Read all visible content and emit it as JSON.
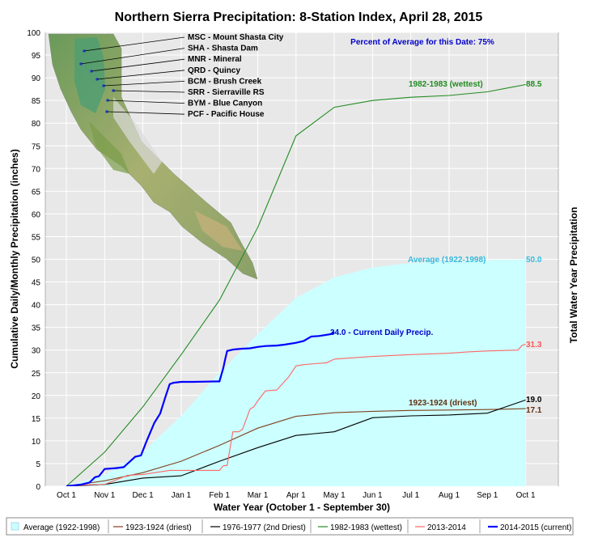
{
  "chart_data": {
    "type": "line",
    "title": "Northern Sierra Precipitation: 8-Station Index, April 28, 2015",
    "subtitle": "Percent of Average for this Date: 75%",
    "xlabel": "Water Year (October 1 - September 30)",
    "ylabel": "Cumulative Daily/Monthly Precipitation (inches)",
    "ylabel_right": "Total Water Year Precipitation",
    "x_ticks": [
      "Oct 1",
      "Nov 1",
      "Dec 1",
      "Jan 1",
      "Feb 1",
      "Mar 1",
      "Apr 1",
      "May 1",
      "Jun 1",
      "Jul 1",
      "Aug 1",
      "Sep 1",
      "Oct 1"
    ],
    "ylim": [
      0,
      100
    ],
    "y_ticks": [
      0,
      5,
      10,
      15,
      20,
      25,
      30,
      35,
      40,
      45,
      50,
      55,
      60,
      65,
      70,
      75,
      80,
      85,
      90,
      95,
      100
    ],
    "grid": true,
    "legend_position": "bottom",
    "series": [
      {
        "name": "Average (1922-1998)",
        "style": "area",
        "color": "#ccffff",
        "x": [
          0,
          1,
          2,
          3,
          4,
          5,
          6,
          7,
          8,
          9,
          10,
          11,
          12
        ],
        "values": [
          0,
          2.5,
          7.5,
          15.5,
          25,
          33.5,
          41.5,
          46,
          48.2,
          49.2,
          49.6,
          49.8,
          50.0
        ],
        "end_label": "50.0",
        "annotation": "Average (1922-1998)"
      },
      {
        "name": "1923-1924 (driest)",
        "color": "#804020",
        "x": [
          0,
          1,
          2,
          3,
          4,
          5,
          6,
          7,
          8,
          9,
          10,
          11,
          12
        ],
        "values": [
          0,
          1.2,
          3.0,
          5.5,
          9.0,
          12.8,
          15.4,
          16.2,
          16.5,
          16.7,
          16.8,
          16.9,
          17.1
        ],
        "end_label": "17.1",
        "annotation": "1923-1924 (driest)"
      },
      {
        "name": "1976-1977 (2nd Driest)",
        "color": "#000000",
        "x": [
          0,
          1,
          2,
          3,
          4,
          5,
          6,
          7,
          8,
          9,
          10,
          11,
          12
        ],
        "values": [
          0,
          0.4,
          1.8,
          2.3,
          5.5,
          8.5,
          11.2,
          12.0,
          15.1,
          15.5,
          15.7,
          16.1,
          19.0
        ],
        "end_label": "19.0"
      },
      {
        "name": "1982-1983 (wettest)",
        "color": "#228b22",
        "x": [
          0,
          1,
          2,
          3,
          4,
          5,
          6,
          7,
          8,
          9,
          10,
          11,
          12
        ],
        "values": [
          0,
          7.5,
          17.5,
          29,
          41,
          57,
          77.2,
          83.5,
          85,
          85.7,
          86.1,
          86.9,
          88.5
        ],
        "end_label": "88.5",
        "annotation": "1982-1983 (wettest)"
      },
      {
        "name": "2013-2014",
        "color": "#ff6666",
        "x": [
          0,
          0.5,
          1,
          1.6,
          2,
          2.7,
          3,
          3.5,
          4,
          4.1,
          4.2,
          4.35,
          4.5,
          4.6,
          4.8,
          4.9,
          5.0,
          5.2,
          5.5,
          5.8,
          6.0,
          6.2,
          6.5,
          6.8,
          7.0,
          7.5,
          8,
          9,
          10,
          10.5,
          11,
          11.8,
          11.9,
          12
        ],
        "values": [
          0,
          0.3,
          0.4,
          2.4,
          2.6,
          3.5,
          3.5,
          3.5,
          3.5,
          4.5,
          4.6,
          12,
          12,
          12.5,
          17,
          17.5,
          18.8,
          21,
          21.2,
          24,
          26.5,
          26.8,
          27,
          27.2,
          28,
          28.3,
          28.6,
          29,
          29.3,
          29.6,
          29.8,
          30,
          31,
          31.3
        ],
        "end_label": "31.3"
      },
      {
        "name": "2014-2015 (current)",
        "color": "#0000ff",
        "x": [
          0,
          0.4,
          0.6,
          0.75,
          0.85,
          1.0,
          1.3,
          1.5,
          1.6,
          1.8,
          1.95,
          2.1,
          2.3,
          2.45,
          2.6,
          2.7,
          2.8,
          3.0,
          3.3,
          4.0,
          4.1,
          4.15,
          4.2,
          4.3,
          4.35,
          4.45,
          4.6,
          4.8,
          5.0,
          5.2,
          5.5,
          5.7,
          6.0,
          6.2,
          6.4,
          6.6,
          6.9,
          7.0
        ],
        "values": [
          0,
          0.4,
          0.8,
          2.0,
          2.2,
          3.8,
          4.0,
          4.2,
          5.0,
          6.5,
          6.8,
          10,
          14,
          16,
          20,
          22.5,
          22.8,
          23,
          23,
          23.1,
          26,
          28,
          29.8,
          30,
          30.1,
          30.2,
          30.3,
          30.4,
          30.7,
          30.9,
          31,
          31.2,
          31.6,
          32,
          33,
          33.1,
          33.5,
          34.0
        ],
        "end_label": "34.0 -  Current Daily Precip."
      }
    ],
    "stations": [
      "MSC - Mount Shasta City",
      "SHA - Shasta Dam",
      "MNR - Mineral",
      "QRD - Quincy",
      "BCM - Brush Creek",
      "SRR - Sierraville RS",
      "BYM - Blue Canyon",
      "PCF - Pacific House"
    ]
  }
}
